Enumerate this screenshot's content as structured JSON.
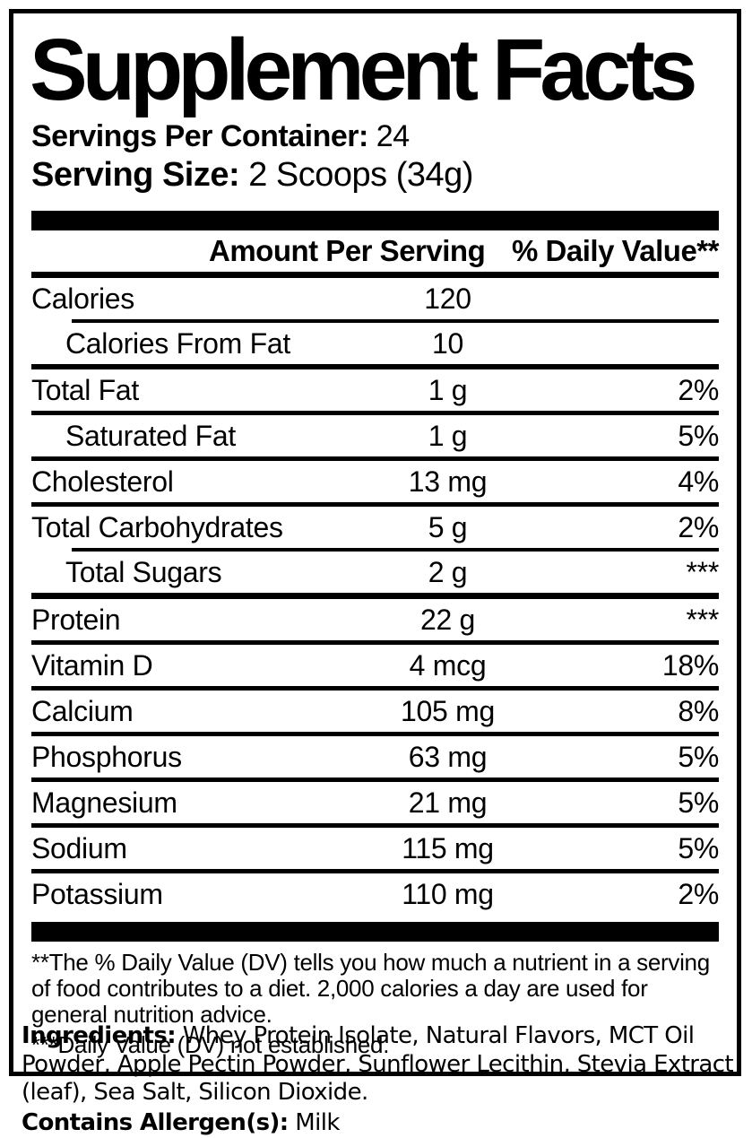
{
  "colors": {
    "foreground": "#000000",
    "background": "#ffffff"
  },
  "title": "Supplement Facts",
  "servings_per_container": {
    "label": "Servings Per Container:",
    "value": "24"
  },
  "serving_size": {
    "label": "Serving Size:",
    "value": "2 Scoops (34g)"
  },
  "table": {
    "headers": {
      "amount_label": "Amount Per Serving",
      "dv_label": "% Daily Value**"
    },
    "rows": [
      {
        "name": "Calories",
        "amount": "120",
        "dv": "",
        "indent": false
      },
      {
        "name": "Calories From Fat",
        "amount": "10",
        "dv": "",
        "indent": true
      },
      {
        "name": "Total Fat",
        "amount": "1 g",
        "dv": "2%",
        "indent": false
      },
      {
        "name": "Saturated Fat",
        "amount": "1 g",
        "dv": "5%",
        "indent": true
      },
      {
        "name": "Cholesterol",
        "amount": "13 mg",
        "dv": "4%",
        "indent": false
      },
      {
        "name": "Total Carbohydrates",
        "amount": "5 g",
        "dv": "2%",
        "indent": false
      },
      {
        "name": "Total Sugars",
        "amount": "2 g",
        "dv": "***",
        "indent": true
      },
      {
        "name": "Protein",
        "amount": "22 g",
        "dv": "***",
        "indent": false
      },
      {
        "name": "Vitamin D",
        "amount": "4 mcg",
        "dv": "18%",
        "indent": false
      },
      {
        "name": "Calcium",
        "amount": "105 mg",
        "dv": "8%",
        "indent": false
      },
      {
        "name": "Phosphorus",
        "amount": "63 mg",
        "dv": "5%",
        "indent": false
      },
      {
        "name": "Magnesium",
        "amount": "21 mg",
        "dv": "5%",
        "indent": false
      },
      {
        "name": "Sodium",
        "amount": "115 mg",
        "dv": "5%",
        "indent": false
      },
      {
        "name": "Potassium",
        "amount": "110 mg",
        "dv": "2%",
        "indent": false
      }
    ]
  },
  "footnotes": [
    "**The % Daily Value (DV) tells you how much a nutrient in a serving of food contributes to a diet. 2,000 calories a day are used for general nutrition advice.",
    "***Daily Value (DV) not established."
  ],
  "ingredients": {
    "label": "Ingredients:",
    "text": "Whey Protein Isolate, Natural Flavors, MCT Oil Powder, Apple Pectin Powder, Sunflower Lecithin, Stevia Extract (leaf), Sea Salt, Silicon Dioxide."
  },
  "allergen": {
    "label": "Contains Allergen(s):",
    "value": "Milk"
  }
}
